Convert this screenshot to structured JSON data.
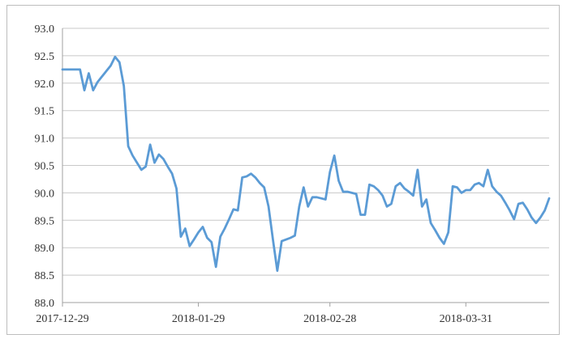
{
  "chart_data": {
    "type": "line",
    "title": "",
    "xlabel": "",
    "ylabel": "",
    "ylim": [
      88.0,
      93.0
    ],
    "y_ticks": [
      "88.0",
      "88.5",
      "89.0",
      "89.5",
      "90.0",
      "90.5",
      "91.0",
      "91.5",
      "92.0",
      "92.5",
      "93.0"
    ],
    "x_tick_labels": [
      "2017-12-29",
      "2018-01-29",
      "2018-02-28",
      "2018-03-31"
    ],
    "x_tick_index": [
      0,
      31,
      61,
      92
    ],
    "grid": "horizontal",
    "legend": "none",
    "series": [
      {
        "color": "#5b9bd5",
        "values": [
          92.25,
          92.25,
          92.25,
          92.25,
          92.25,
          91.87,
          92.18,
          91.87,
          92.02,
          92.12,
          92.22,
          92.32,
          92.48,
          92.38,
          91.95,
          90.85,
          90.68,
          90.55,
          90.42,
          90.48,
          90.88,
          90.55,
          90.7,
          90.62,
          90.48,
          90.35,
          90.08,
          89.2,
          89.35,
          89.03,
          89.15,
          89.28,
          89.38,
          89.18,
          89.1,
          88.65,
          89.2,
          89.35,
          89.52,
          89.7,
          89.68,
          90.28,
          90.3,
          90.35,
          90.28,
          90.18,
          90.1,
          89.75,
          89.15,
          88.58,
          89.12,
          89.15,
          89.18,
          89.22,
          89.75,
          90.1,
          89.75,
          89.92,
          89.92,
          89.9,
          89.88,
          90.38,
          90.68,
          90.22,
          90.02,
          90.02,
          90.0,
          89.98,
          89.6,
          89.6,
          90.15,
          90.12,
          90.05,
          89.95,
          89.75,
          89.8,
          90.12,
          90.18,
          90.08,
          90.02,
          89.95,
          90.42,
          89.75,
          89.88,
          89.45,
          89.32,
          89.18,
          89.07,
          89.28,
          90.12,
          90.1,
          90.0,
          90.05,
          90.05,
          90.15,
          90.18,
          90.12,
          90.42,
          90.12,
          90.02,
          89.95,
          89.82,
          89.68,
          89.52,
          89.8,
          89.82,
          89.7,
          89.55,
          89.45,
          89.55,
          89.68,
          89.9
        ]
      }
    ]
  }
}
